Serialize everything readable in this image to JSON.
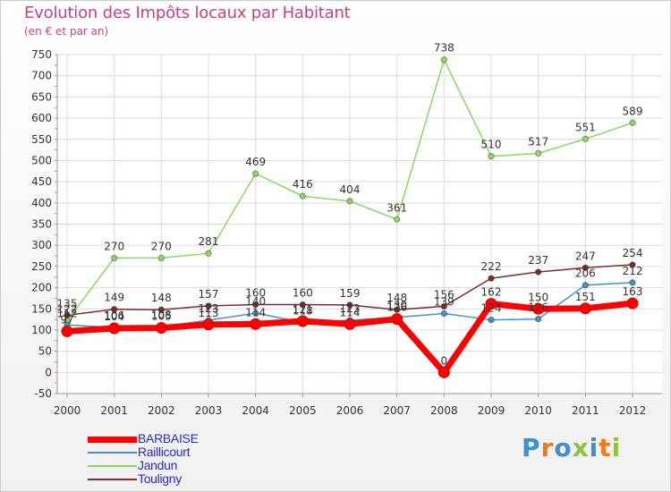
{
  "chart_data": {
    "type": "line",
    "title": "Evolution des Impôts locaux par Habitant",
    "subtitle": "(en € et par an)",
    "xlabel": "",
    "ylabel": "",
    "ylim": [
      -50,
      750
    ],
    "y_ticks": [
      -50,
      0,
      50,
      100,
      150,
      200,
      250,
      300,
      350,
      400,
      450,
      500,
      550,
      600,
      650,
      700,
      750
    ],
    "categories": [
      "2000",
      "2001",
      "2002",
      "2003",
      "2004",
      "2005",
      "2006",
      "2007",
      "2008",
      "2009",
      "2010",
      "2011",
      "2012"
    ],
    "series": [
      {
        "name": "BARBAISE",
        "color": "#ff0000",
        "values": [
          97,
          104,
          105,
          113,
          114,
          121,
          114,
          126,
          0,
          162,
          150,
          151,
          163
        ],
        "labels": [
          "97",
          "104",
          "105",
          "113",
          "114",
          "121",
          "114",
          "126",
          "0",
          "162",
          "150",
          "151",
          "163"
        ]
      },
      {
        "name": "Raillicourt",
        "color": "#4a90c6",
        "values": [
          112,
          106,
          108,
          123,
          140,
          118,
          123,
          130,
          139,
          124,
          126,
          206,
          212
        ],
        "labels": [
          "112",
          "106",
          "108",
          "123",
          "140",
          "118",
          "123",
          "130",
          "139",
          "124",
          "126",
          "206",
          "212"
        ]
      },
      {
        "name": "Jandun",
        "color": "#8fd46a",
        "values": [
          122,
          270,
          270,
          281,
          469,
          416,
          404,
          361,
          738,
          510,
          517,
          551,
          589
        ],
        "labels": [
          "122",
          "270",
          "270",
          "281",
          "469",
          "416",
          "404",
          "361",
          "738",
          "510",
          "517",
          "551",
          "589"
        ]
      },
      {
        "name": "Touligny",
        "color": "#7a2e2e",
        "values": [
          135,
          149,
          148,
          157,
          160,
          160,
          159,
          148,
          156,
          222,
          237,
          247,
          254
        ],
        "labels": [
          "135",
          "149",
          "148",
          "157",
          "160",
          "160",
          "159",
          "148",
          "156",
          "222",
          "237",
          "247",
          "254"
        ]
      }
    ],
    "legend_position": "bottom-left"
  },
  "logo": {
    "text": "Proxiti",
    "colors": [
      "#3f8fd1",
      "#f07a1a",
      "#3f8fd1",
      "#8bc43f",
      "#3f8fd1",
      "#f07a1a",
      "#8bc43f"
    ]
  }
}
